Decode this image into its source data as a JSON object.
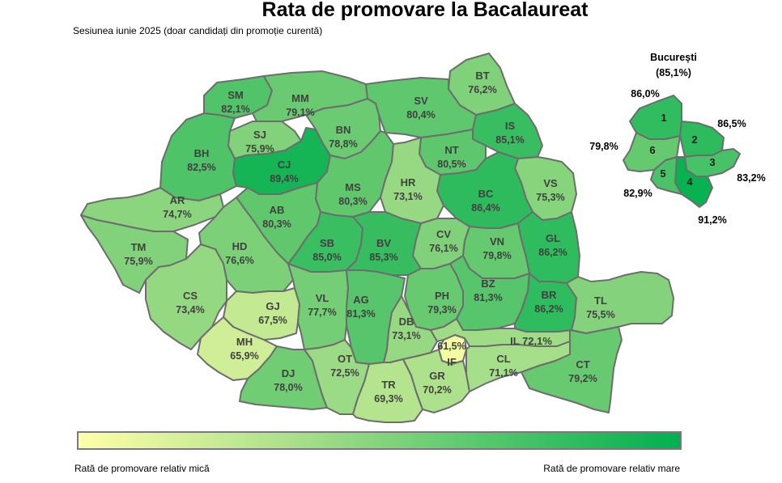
{
  "title": "Rata de promovare la Bacalaureat",
  "subtitle": "Sesiunea iunie 2025 (doar candidați din promoție curentă)",
  "legend": {
    "low_label": "Rată de promovare relativ mică",
    "high_label": "Rată de promovare relativ mare",
    "color_low": "#ffffa8",
    "color_high": "#00b04f"
  },
  "counties": [
    {
      "code": "SM",
      "value": "82,1%"
    },
    {
      "code": "MM",
      "value": "79,1%"
    },
    {
      "code": "BT",
      "value": "76,2%"
    },
    {
      "code": "SV",
      "value": "80,4%"
    },
    {
      "code": "BH",
      "value": "82,5%"
    },
    {
      "code": "SJ",
      "value": "75,9%"
    },
    {
      "code": "BN",
      "value": "78,8%"
    },
    {
      "code": "IS",
      "value": "85,1%"
    },
    {
      "code": "CJ",
      "value": "89,4%"
    },
    {
      "code": "NT",
      "value": "80,5%"
    },
    {
      "code": "VS",
      "value": "75,3%"
    },
    {
      "code": "AR",
      "value": "74,7%"
    },
    {
      "code": "MS",
      "value": "80,3%"
    },
    {
      "code": "HR",
      "value": "73,1%"
    },
    {
      "code": "BC",
      "value": "86,4%"
    },
    {
      "code": "AB",
      "value": "80,3%"
    },
    {
      "code": "TM",
      "value": "75,9%"
    },
    {
      "code": "HD",
      "value": "76,6%"
    },
    {
      "code": "SB",
      "value": "85,0%"
    },
    {
      "code": "BV",
      "value": "85,3%"
    },
    {
      "code": "CV",
      "value": "76,1%"
    },
    {
      "code": "VN",
      "value": "79,8%"
    },
    {
      "code": "GL",
      "value": "86,2%"
    },
    {
      "code": "CS",
      "value": "73,4%"
    },
    {
      "code": "GJ",
      "value": "67,5%"
    },
    {
      "code": "VL",
      "value": "77,7%"
    },
    {
      "code": "AG",
      "value": "81,3%"
    },
    {
      "code": "PH",
      "value": "79,3%"
    },
    {
      "code": "BZ",
      "value": "81,3%"
    },
    {
      "code": "BR",
      "value": "86,2%"
    },
    {
      "code": "TL",
      "value": "75,5%"
    },
    {
      "code": "MH",
      "value": "65,9%"
    },
    {
      "code": "DB",
      "value": "73,1%"
    },
    {
      "code": "IF",
      "value": "61,5%"
    },
    {
      "code": "IL",
      "value": "72,1%"
    },
    {
      "code": "DJ",
      "value": "78,0%"
    },
    {
      "code": "OT",
      "value": "72,5%"
    },
    {
      "code": "TR",
      "value": "69,3%"
    },
    {
      "code": "GR",
      "value": "70,2%"
    },
    {
      "code": "CL",
      "value": "71,1%"
    },
    {
      "code": "CT",
      "value": "79,2%"
    }
  ],
  "bucharest": {
    "title": "București",
    "total": "(85,1%)",
    "sectors": [
      {
        "number": "1",
        "value": "86,0%"
      },
      {
        "number": "2",
        "value": "86,5%"
      },
      {
        "number": "3",
        "value": "83,2%"
      },
      {
        "number": "4",
        "value": "91,2%"
      },
      {
        "number": "5",
        "value": "82,9%"
      },
      {
        "number": "6",
        "value": "79,8%"
      }
    ]
  }
}
